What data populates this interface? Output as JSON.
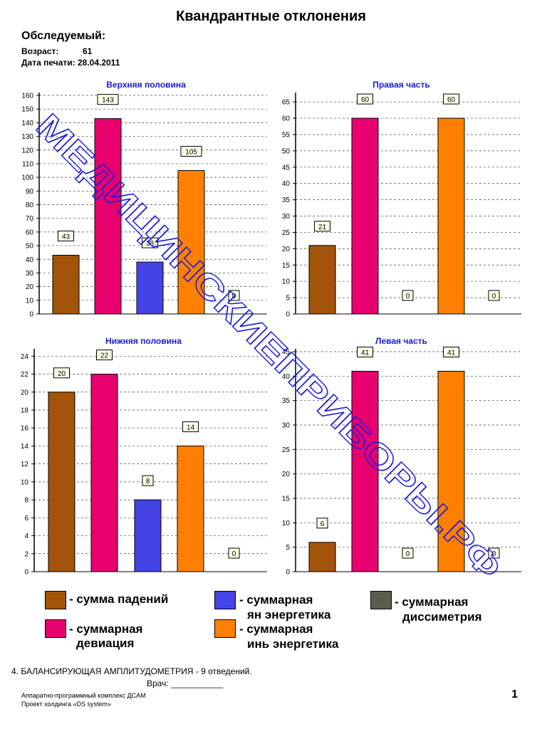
{
  "page": {
    "title": "Квандрантные отклонения",
    "subject_label": "Обследуемый:",
    "age_label": "Возраст:",
    "age_value": "61",
    "print_date_label": "Дата печати:",
    "print_date_value": "28.04.2011"
  },
  "chart_data": [
    {
      "type": "bar",
      "title": "Верхняя половина",
      "categories": [
        "сумма падений",
        "суммарная девиация",
        "суммарная ян энергетика",
        "суммарная инь энергетика",
        "суммарная диссиметрия"
      ],
      "values": [
        43,
        143,
        38,
        105,
        0
      ],
      "data_labels": [
        "43",
        "143",
        "38",
        "105",
        "0"
      ],
      "ylim": [
        0,
        160
      ],
      "yticks": [
        0,
        10,
        20,
        30,
        40,
        50,
        60,
        70,
        80,
        90,
        100,
        110,
        120,
        130,
        140,
        150,
        160
      ],
      "grid": true,
      "colors": [
        "#a3540a",
        "#e8006e",
        "#4343e6",
        "#ff8000",
        "#5c5c4a"
      ]
    },
    {
      "type": "bar",
      "title": "Правая часть",
      "categories": [
        "сумма падений",
        "суммарная девиация",
        "суммарная ян энергетика",
        "суммарная инь энергетика",
        "суммарная диссиметрия"
      ],
      "values": [
        21,
        60,
        0,
        60,
        0
      ],
      "data_labels": [
        "21",
        "60",
        "0",
        "60",
        "0"
      ],
      "ylim": [
        0,
        67
      ],
      "yticks": [
        0,
        5,
        10,
        15,
        20,
        25,
        30,
        35,
        40,
        45,
        50,
        55,
        60,
        65
      ],
      "grid": true,
      "colors": [
        "#a3540a",
        "#e8006e",
        "#4343e6",
        "#ff8000",
        "#5c5c4a"
      ]
    },
    {
      "type": "bar",
      "title": "Нижняя половина",
      "categories": [
        "сумма падений",
        "суммарная девиация",
        "суммарная ян энергетика",
        "суммарная инь энергетика",
        "суммарная диссиметрия"
      ],
      "values": [
        20,
        22,
        8,
        14,
        0
      ],
      "data_labels": [
        "20",
        "22",
        "8",
        "14",
        "0"
      ],
      "ylim": [
        0,
        24.5
      ],
      "yticks": [
        0,
        2,
        4,
        6,
        8,
        10,
        12,
        14,
        16,
        18,
        20,
        22,
        24
      ],
      "grid": true,
      "colors": [
        "#a3540a",
        "#e8006e",
        "#4343e6",
        "#ff8000",
        "#5c5c4a"
      ]
    },
    {
      "type": "bar",
      "title": "Левая часть",
      "categories": [
        "сумма падений",
        "суммарная девиация",
        "суммарная ян энергетика",
        "суммарная инь энергетика",
        "суммарная диссиметрия"
      ],
      "values": [
        6,
        41,
        0,
        41,
        0
      ],
      "data_labels": [
        "6",
        "41",
        "0",
        "41",
        "0"
      ],
      "ylim": [
        0,
        45
      ],
      "yticks": [
        0,
        5,
        10,
        15,
        20,
        25,
        30,
        35,
        40,
        45
      ],
      "grid": true,
      "colors": [
        "#a3540a",
        "#e8006e",
        "#4343e6",
        "#ff8000",
        "#5c5c4a"
      ]
    }
  ],
  "legend": [
    {
      "line1": "- сумма падений",
      "line2": "",
      "color": "#a3540a"
    },
    {
      "line1": "- суммарная",
      "line2": "ян энергетика",
      "color": "#4343e6"
    },
    {
      "line1": "- суммарная",
      "line2": "диссиметрия",
      "color": "#5c5c4a"
    },
    {
      "line1": "- суммарная",
      "line2": "девиация",
      "color": "#e8006e"
    },
    {
      "line1": "- суммарная",
      "line2": "инь энергетика",
      "color": "#ff8000"
    }
  ],
  "footer": {
    "section": "4. БАЛАНСИРУЮЩАЯ АМПЛИТУДОМЕТРИЯ - 9 отведений.",
    "doctor_label": "Врач:",
    "doctor_line": "___________",
    "complex": "Аппаратно-программный комплекс ДСАМ",
    "project": "Проект холдинга «DS system»",
    "page_number": "1"
  },
  "watermark": {
    "text": "МЕДИЦИНСКИЕПРИБОРЫ.РФ",
    "color": "#1a1ad6"
  }
}
